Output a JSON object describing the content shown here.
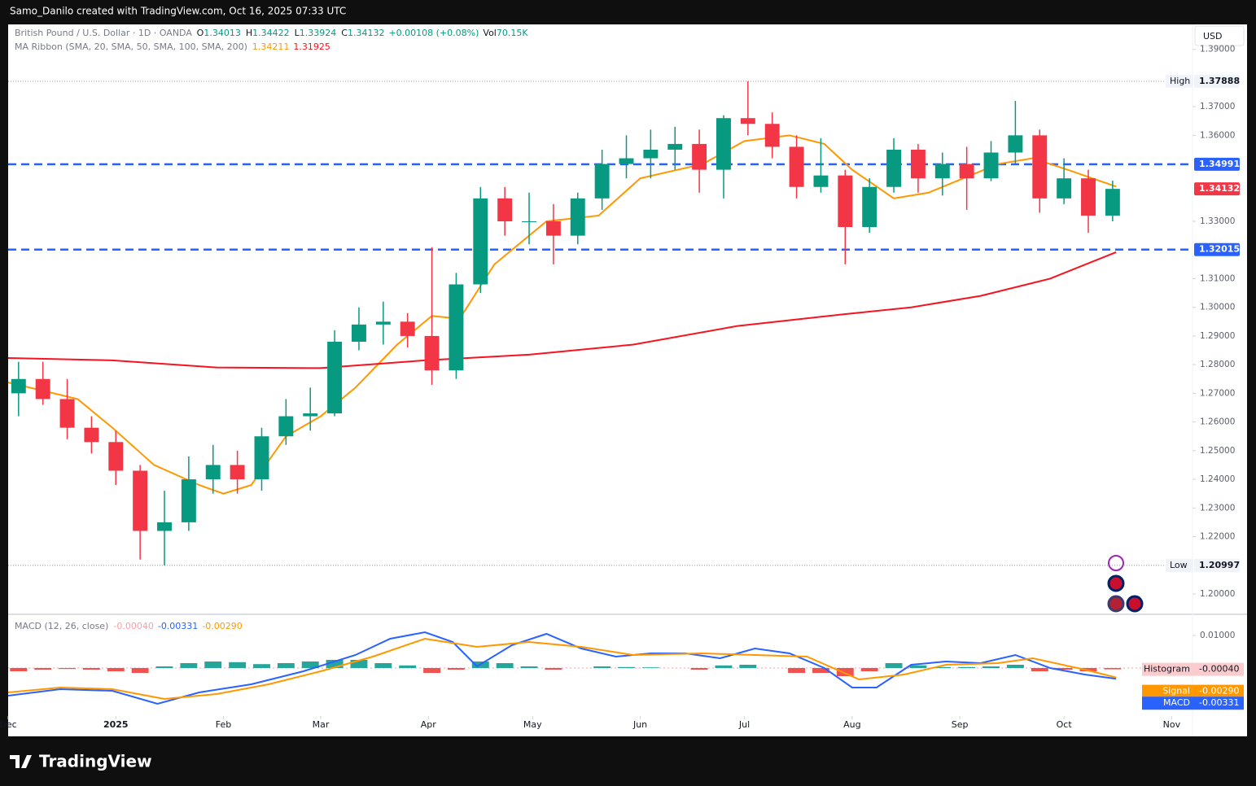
{
  "header": "Samo_Danilo created with TradingView.com, Oct 16, 2025 07:33 UTC",
  "brand": "TradingView",
  "currency": "USD",
  "legend": {
    "symbol": "British Pound / U.S. Dollar · 1D · OANDA",
    "ohlc": [
      {
        "label": "O",
        "value": "1.34013"
      },
      {
        "label": "H",
        "value": "1.34422"
      },
      {
        "label": "L",
        "value": "1.33924"
      },
      {
        "label": "C",
        "value": "1.34132"
      }
    ],
    "change": "+0.00108 (+0.08%)",
    "vol_label": "Vol",
    "vol": "70.15K",
    "ma": "MA Ribbon (SMA, 20, SMA, 50, SMA, 100, SMA, 200)",
    "ma20": "1.34211",
    "ma200": "1.31925"
  },
  "chart_data": {
    "type": "candlestick",
    "xlim": [
      0,
      341
    ],
    "xticks": [
      {
        "value": 0,
        "label": "Dec"
      },
      {
        "value": 31,
        "label": "2025"
      },
      {
        "value": 62,
        "label": "Feb"
      },
      {
        "value": 90,
        "label": "Mar"
      },
      {
        "value": 121,
        "label": "Apr"
      },
      {
        "value": 151,
        "label": "May"
      },
      {
        "value": 182,
        "label": "Jun"
      },
      {
        "value": 212,
        "label": "Jul"
      },
      {
        "value": 243,
        "label": "Aug"
      },
      {
        "value": 274,
        "label": "Sep"
      },
      {
        "value": 304,
        "label": "Oct"
      },
      {
        "value": 335,
        "label": "Nov"
      }
    ],
    "ylim": [
      1.1929,
      1.3987
    ],
    "yticks": [
      {
        "value": 1.39,
        "label": "1.39000"
      },
      {
        "value": 1.37,
        "label": "1.37000"
      },
      {
        "value": 1.36,
        "label": "1.36000"
      },
      {
        "value": 1.33,
        "label": "1.33000"
      },
      {
        "value": 1.31,
        "label": "1.31000"
      },
      {
        "value": 1.3,
        "label": "1.30000"
      },
      {
        "value": 1.29,
        "label": "1.29000"
      },
      {
        "value": 1.28,
        "label": "1.28000"
      },
      {
        "value": 1.27,
        "label": "1.27000"
      },
      {
        "value": 1.26,
        "label": "1.26000"
      },
      {
        "value": 1.25,
        "label": "1.25000"
      },
      {
        "value": 1.24,
        "label": "1.24000"
      },
      {
        "value": 1.23,
        "label": "1.23000"
      },
      {
        "value": 1.22,
        "label": "1.22000"
      },
      {
        "value": 1.2,
        "label": "1.20000"
      }
    ],
    "grid": false,
    "up_color": "#089981",
    "down_color": "#f23645",
    "candles": {
      "x": [
        3,
        10,
        17,
        24,
        31,
        38,
        45,
        52,
        59,
        66,
        73,
        80,
        87,
        94,
        101,
        108,
        115,
        122,
        129,
        136,
        143,
        150,
        157,
        164,
        171,
        178,
        185,
        192,
        199,
        206,
        213,
        220,
        227,
        234,
        241,
        248,
        255,
        262,
        269,
        276,
        283,
        290,
        297,
        304,
        311,
        318
      ],
      "open": [
        1.27,
        1.275,
        1.268,
        1.258,
        1.253,
        1.243,
        1.222,
        1.225,
        1.24,
        1.245,
        1.24,
        1.255,
        1.262,
        1.263,
        1.288,
        1.294,
        1.295,
        1.29,
        1.278,
        1.308,
        1.338,
        1.33,
        1.33,
        1.325,
        1.338,
        1.35,
        1.352,
        1.355,
        1.357,
        1.348,
        1.366,
        1.364,
        1.356,
        1.342,
        1.346,
        1.328,
        1.342,
        1.355,
        1.345,
        1.35,
        1.345,
        1.354,
        1.36,
        1.338,
        1.345,
        1.332
      ],
      "high": [
        1.281,
        1.281,
        1.275,
        1.262,
        1.257,
        1.245,
        1.236,
        1.248,
        1.252,
        1.25,
        1.258,
        1.268,
        1.272,
        1.292,
        1.3,
        1.302,
        1.298,
        1.321,
        1.312,
        1.342,
        1.342,
        1.34,
        1.336,
        1.34,
        1.355,
        1.36,
        1.362,
        1.363,
        1.362,
        1.367,
        1.37888,
        1.368,
        1.36,
        1.359,
        1.348,
        1.345,
        1.359,
        1.357,
        1.354,
        1.356,
        1.358,
        1.372,
        1.362,
        1.352,
        1.348,
        1.3442
      ],
      "low": [
        1.262,
        1.266,
        1.254,
        1.249,
        1.238,
        1.212,
        1.20997,
        1.222,
        1.235,
        1.235,
        1.236,
        1.252,
        1.257,
        1.262,
        1.285,
        1.287,
        1.286,
        1.273,
        1.275,
        1.305,
        1.325,
        1.322,
        1.315,
        1.322,
        1.334,
        1.345,
        1.345,
        1.348,
        1.34,
        1.338,
        1.36,
        1.352,
        1.338,
        1.34,
        1.315,
        1.326,
        1.34,
        1.34,
        1.339,
        1.334,
        1.344,
        1.35,
        1.333,
        1.336,
        1.326,
        1.33
      ],
      "close": [
        1.275,
        1.268,
        1.258,
        1.253,
        1.243,
        1.222,
        1.225,
        1.24,
        1.245,
        1.24,
        1.255,
        1.262,
        1.263,
        1.288,
        1.294,
        1.295,
        1.29,
        1.278,
        1.308,
        1.338,
        1.33,
        1.33,
        1.325,
        1.338,
        1.35,
        1.352,
        1.355,
        1.357,
        1.348,
        1.366,
        1.364,
        1.356,
        1.342,
        1.346,
        1.328,
        1.342,
        1.355,
        1.345,
        1.35,
        1.345,
        1.354,
        1.36,
        1.338,
        1.345,
        1.332,
        1.34132
      ]
    },
    "lines": [
      {
        "color": "#ff9800",
        "x": [
          0,
          20,
          30,
          42,
          55,
          62,
          70,
          80,
          90,
          100,
          112,
          122,
          130,
          140,
          155,
          170,
          182,
          200,
          212,
          225,
          235,
          243,
          255,
          265,
          275,
          285,
          295,
          305,
          319
        ],
        "values": [
          1.2738,
          1.268,
          1.258,
          1.245,
          1.238,
          1.235,
          1.238,
          1.255,
          1.262,
          1.272,
          1.287,
          1.297,
          1.296,
          1.315,
          1.33,
          1.332,
          1.345,
          1.35,
          1.358,
          1.36,
          1.357,
          1.348,
          1.338,
          1.34,
          1.345,
          1.35,
          1.352,
          1.348,
          1.34211
        ]
      },
      {
        "color": "#f7131f",
        "x": [
          0,
          30,
          60,
          90,
          120,
          150,
          180,
          210,
          240,
          260,
          280,
          300,
          319
        ],
        "values": [
          1.2823,
          1.2815,
          1.279,
          1.2788,
          1.2815,
          1.2835,
          1.287,
          1.2935,
          1.2975,
          1.3,
          1.304,
          1.31,
          1.31925
        ]
      }
    ],
    "levels": [
      {
        "value": 1.34991,
        "color": "#2962ff"
      },
      {
        "value": 1.32015,
        "color": "#2962ff"
      }
    ],
    "last_price": {
      "value": 1.34132,
      "color": "#f23645"
    },
    "high": {
      "label": "High",
      "value": 1.37888
    },
    "low": {
      "label": "Low",
      "value": 1.20997
    },
    "macd": {
      "title": "MACD (12, 26, close)",
      "hist_label": "-0.00040",
      "macd_label": "-0.00331",
      "signal_label": "-0.00290",
      "hist_name": "Histogram",
      "signal_name": "Signal",
      "macd_name": "MACD",
      "y2lim": [
        -0.01475,
        0.016
      ],
      "y2ticks": [
        {
          "value": 0.01,
          "label": "0.01000"
        }
      ],
      "hist_pos": "#26a69a",
      "hist_neg": "#ef5350",
      "histogram": [
        -0.001,
        -0.0005,
        -0.0003,
        -0.0005,
        -0.001,
        -0.0015,
        0.0005,
        0.0015,
        0.002,
        0.0018,
        0.0012,
        0.0015,
        0.002,
        0.0025,
        0.0025,
        0.0015,
        0.0008,
        -0.0015,
        -0.0005,
        0.002,
        0.0015,
        0.0005,
        -0.0005,
        0,
        0.0005,
        0.0003,
        0.0002,
        0,
        -0.0005,
        0.0008,
        0.001,
        0,
        -0.0015,
        -0.0015,
        -0.0025,
        -0.001,
        0.0015,
        0.0008,
        0.0003,
        0.0003,
        0.0005,
        0.001,
        -0.001,
        -0.0005,
        -0.001,
        -0.0004
      ],
      "macd_line": {
        "color": "#2962ff",
        "x": [
          0,
          15,
          30,
          43,
          55,
          70,
          85,
          100,
          110,
          120,
          128,
          135,
          145,
          155,
          165,
          175,
          185,
          195,
          205,
          215,
          225,
          235,
          243,
          250,
          260,
          270,
          280,
          290,
          300,
          310,
          319
        ],
        "values": [
          -0.0085,
          -0.0065,
          -0.007,
          -0.011,
          -0.0075,
          -0.005,
          -0.001,
          0.004,
          0.009,
          0.011,
          0.008,
          0.0005,
          0.007,
          0.0105,
          0.006,
          0.0035,
          0.0045,
          0.0045,
          0.003,
          0.006,
          0.0045,
          0,
          -0.006,
          -0.006,
          0.001,
          0.002,
          0.0015,
          0.004,
          0,
          -0.002,
          -0.00331
        ]
      },
      "signal_line": {
        "color": "#ff9800",
        "x": [
          0,
          15,
          30,
          45,
          60,
          75,
          90,
          105,
          120,
          135,
          150,
          165,
          180,
          200,
          215,
          230,
          245,
          258,
          270,
          285,
          295,
          310,
          319
        ],
        "values": [
          -0.0075,
          -0.006,
          -0.0065,
          -0.0095,
          -0.008,
          -0.005,
          -0.001,
          0.0035,
          0.009,
          0.0065,
          0.008,
          0.0065,
          0.004,
          0.0045,
          0.004,
          0.0035,
          -0.0035,
          -0.002,
          0.001,
          0.0015,
          0.003,
          -0.0005,
          -0.0029
        ]
      }
    }
  }
}
